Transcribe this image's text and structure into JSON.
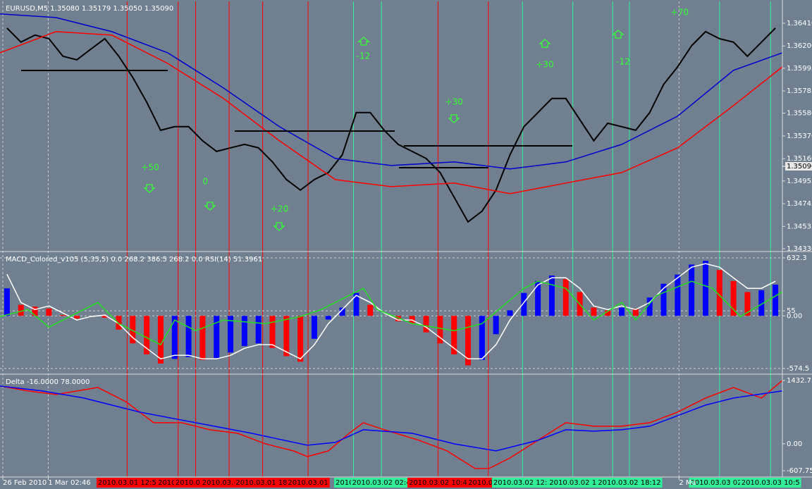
{
  "chart_data": [
    {
      "type": "line",
      "title": "EURUSD,M5 1.35080 1.35179 1.35050 1.35090",
      "x": [
        1,
        3,
        5,
        7,
        9,
        11,
        13,
        15,
        17,
        19,
        21,
        23,
        25,
        27,
        29,
        31,
        33,
        35,
        37,
        39,
        41,
        43,
        45,
        47,
        49,
        51,
        53,
        55,
        57,
        59,
        61,
        63,
        65,
        67,
        69,
        71,
        73,
        75,
        77,
        79,
        81,
        83,
        85,
        87,
        89,
        91,
        93,
        95,
        97,
        99,
        101,
        103,
        105,
        107,
        109,
        111
      ],
      "series": [
        {
          "color": "#000000",
          "values": [
            1.36365,
            1.36235,
            1.363,
            1.36267,
            1.36105,
            1.36072,
            1.3617,
            1.36267,
            1.36105,
            1.3591,
            1.35682,
            1.35422,
            1.35455,
            1.35455,
            1.35325,
            1.35227,
            1.3526,
            1.35292,
            1.3526,
            1.3513,
            1.34968,
            1.3487,
            1.34968,
            1.35032,
            1.35195,
            1.35585,
            1.35585,
            1.35422,
            1.35292,
            1.35227,
            1.35162,
            1.35032,
            1.34805,
            1.34577,
            1.34675,
            1.3487,
            1.35195,
            1.35455,
            1.35585,
            1.35715,
            1.35715,
            1.3552,
            1.35325,
            1.35487,
            1.35455,
            1.35422,
            1.35585,
            1.35845,
            1.36007,
            1.36202,
            1.36332,
            1.36267,
            1.36235,
            1.36105,
            1.36235,
            1.36365
          ]
        },
        {
          "color": "#0000cd",
          "x": [
            0,
            8,
            16,
            24,
            32,
            40,
            48,
            56,
            65,
            73,
            81,
            89,
            97,
            105,
            112
          ],
          "values": [
            1.36495,
            1.36462,
            1.36332,
            1.36137,
            1.35812,
            1.35455,
            1.35162,
            1.35097,
            1.3513,
            1.35065,
            1.3513,
            1.35292,
            1.35552,
            1.35975,
            1.36137
          ]
        },
        {
          "color": "#ff0000",
          "x": [
            0,
            8,
            16,
            24,
            32,
            40,
            48,
            56,
            65,
            73,
            81,
            89,
            97,
            105,
            112
          ],
          "values": [
            1.36137,
            1.36332,
            1.363,
            1.36039,
            1.35715,
            1.35325,
            1.34967,
            1.34902,
            1.34935,
            1.34837,
            1.34935,
            1.35032,
            1.3526,
            1.3565,
            1.36007
          ]
        }
      ],
      "xlim": [
        0,
        112
      ],
      "ylim": [
        1.3431,
        1.36611
      ],
      "yticks": [
        {
          "value": 1.3641,
          "label": "1.36410"
        },
        {
          "value": 1.362,
          "label": "1.36200"
        },
        {
          "value": 1.35995,
          "label": "1.35995"
        },
        {
          "value": 1.35785,
          "label": "1.35785"
        },
        {
          "value": 1.3558,
          "label": "1.35580"
        },
        {
          "value": 1.3537,
          "label": "1.35370"
        },
        {
          "value": 1.3516,
          "label": "1.35160"
        },
        {
          "value": 1.34955,
          "label": "1.34955"
        },
        {
          "value": 1.34745,
          "label": "1.34745"
        },
        {
          "value": 1.34535,
          "label": "1.34535"
        },
        {
          "value": 1.3433,
          "label": "1.34330"
        }
      ],
      "current_price": {
        "value": 1.3509,
        "label": "1.35090"
      },
      "xticks": [
        {
          "value": 0.4,
          "label": "26 Feb 2010"
        },
        {
          "value": 6.9,
          "label": "1 Mar 02:46"
        },
        {
          "value": 97.2,
          "label": "2 Ma"
        }
      ],
      "annotations": [
        {
          "text": "+50",
          "x": 21.5,
          "y": 1.35077
        },
        {
          "text": "0",
          "x": 29.4,
          "y": 1.34947
        },
        {
          "text": "+20",
          "x": 40,
          "y": 1.34694
        },
        {
          "text": "-12",
          "x": 52,
          "y": 1.36105
        },
        {
          "text": "+30",
          "x": 65,
          "y": 1.35682
        },
        {
          "text": "+30",
          "x": 78,
          "y": 1.36027
        },
        {
          "text": "-12",
          "x": 89.2,
          "y": 1.36053
        },
        {
          "text": "+70",
          "x": 97.3,
          "y": 1.36508
        }
      ],
      "markers": [
        {
          "value": 18.2,
          "label": "2010.03.01 12:5",
          "color": "#ff0000"
        },
        {
          "value": 25.5,
          "label": "2010.03.01",
          "color": "#ff0000"
        },
        {
          "value": 28,
          "label": "2010.03.01",
          "color": "#ff0000"
        },
        {
          "value": 32.8,
          "label": "2010.03.01 16:",
          "color": "#ff0000"
        },
        {
          "value": 37.6,
          "label": "2010.03.01 18:",
          "color": "#ff0000"
        },
        {
          "value": 44.1,
          "label": "2010.03.01",
          "color": "#ff0000"
        },
        {
          "value": 50.6,
          "label": "2010.03.0",
          "color": "#33ee99"
        },
        {
          "value": 54.6,
          "label": "2010.03.02 02:4",
          "color": "#33ee99"
        },
        {
          "value": 62.7,
          "label": "2010.03.02 10:4",
          "color": "#ff0000"
        },
        {
          "value": 69.9,
          "label": "2010.03.02",
          "color": "#ff0000"
        },
        {
          "value": 74.8,
          "label": "2010.03.02 12:5",
          "color": "#33ee99"
        },
        {
          "value": 82,
          "label": "2010.03.02 1",
          "color": "#33ee99"
        },
        {
          "value": 87.7,
          "label": "2010",
          "color": "#33ee99"
        },
        {
          "value": 90.1,
          "label": "2010.03.02 18:12",
          "color": "#33ee99"
        },
        {
          "value": 103,
          "label": "2010.03.03 02:5",
          "color": "#33ee99"
        },
        {
          "value": 110.3,
          "label": "2010.03.03 10:5",
          "color": "#33ee99"
        }
      ]
    },
    {
      "type": "bar",
      "title": "MACD_Colored_v105 (5,35,5) 0.0 268.2 386.5 268.2 0.0  RSI(14) 51.3961",
      "x": [
        1,
        3,
        5,
        7,
        9,
        11,
        13,
        15,
        17,
        19,
        21,
        23,
        25,
        27,
        29,
        31,
        33,
        35,
        37,
        39,
        41,
        43,
        45,
        47,
        49,
        51,
        53,
        55,
        57,
        59,
        61,
        63,
        65,
        67,
        69,
        71,
        73,
        75,
        77,
        79,
        81,
        83,
        85,
        87,
        89,
        91,
        93,
        95,
        97,
        99,
        101,
        103,
        105,
        107,
        109,
        111
      ],
      "values": [
        300,
        120,
        100,
        80,
        10,
        -30,
        0,
        -20,
        -150,
        -300,
        -420,
        -520,
        -470,
        -450,
        -480,
        -460,
        -400,
        -330,
        -300,
        -350,
        -440,
        -500,
        -250,
        -40,
        90,
        250,
        120,
        0,
        -60,
        -80,
        -180,
        -300,
        -420,
        -540,
        -480,
        -200,
        60,
        250,
        380,
        440,
        400,
        260,
        90,
        60,
        90,
        80,
        200,
        350,
        450,
        560,
        600,
        500,
        380,
        260,
        280,
        340
      ],
      "rising_color": "#0000ff",
      "falling_color": "#ff0000",
      "series": [
        {
          "color": "#ffffff",
          "values": [
            454,
            146,
            69,
            108,
            31,
            -46,
            -8,
            8,
            -85,
            -238,
            -354,
            -469,
            -431,
            -431,
            -469,
            -469,
            -431,
            -354,
            -315,
            -315,
            -392,
            -469,
            -315,
            -85,
            69,
            223,
            146,
            31,
            -46,
            -46,
            -123,
            -238,
            -354,
            -469,
            -469,
            -315,
            -46,
            146,
            338,
            415,
            415,
            300,
            108,
            69,
            108,
            69,
            146,
            300,
            415,
            531,
            569,
            531,
            415,
            300,
            300,
            377
          ]
        },
        {
          "color": "#22dd22",
          "x": [
            0,
            4,
            7,
            14,
            17,
            23,
            25,
            28,
            32,
            38,
            43,
            46,
            52,
            54,
            59,
            65,
            69,
            75,
            77,
            81,
            85,
            89,
            91,
            94,
            99,
            102,
            106,
            112
          ],
          "values": [
            -8,
            69,
            -123,
            146,
            -85,
            -315,
            -46,
            -162,
            -46,
            -85,
            -8,
            69,
            300,
            69,
            -85,
            -162,
            -85,
            300,
            377,
            300,
            -46,
            146,
            -46,
            223,
            377,
            300,
            -8,
            261
          ]
        }
      ],
      "xlim": [
        0,
        112
      ],
      "ylim": [
        -628.3,
        693.8
      ],
      "yticks": [
        632.3,
        55,
        {
          "value": 0,
          "label": "0.00"
        },
        -574.5
      ],
      "grid": true
    },
    {
      "type": "line",
      "title": "Delta -16.0000 78.0000",
      "series": [
        {
          "color": "#ff0000",
          "x": [
            0,
            4,
            8,
            14,
            18,
            22,
            26,
            30,
            34,
            38,
            42,
            44,
            47,
            50,
            52,
            55,
            60,
            64,
            68,
            70,
            73,
            77,
            81,
            85,
            89,
            93,
            97,
            101,
            105,
            109,
            112
          ],
          "values": [
            1307,
            1196,
            1116,
            1275,
            956,
            478,
            478,
            319,
            239,
            0,
            -159,
            -287,
            -159,
            239,
            478,
            319,
            80,
            -159,
            -558,
            -558,
            -319,
            80,
            478,
            398,
            398,
            478,
            717,
            1036,
            1275,
            1036,
            1434
          ]
        },
        {
          "color": "#0000ff",
          "x": [
            0,
            6,
            12,
            20,
            28,
            36,
            44,
            48,
            52,
            59,
            65,
            71,
            77,
            81,
            85,
            89,
            93,
            97,
            101,
            105,
            112
          ],
          "values": [
            1307,
            1196,
            1036,
            717,
            478,
            239,
            -32,
            32,
            319,
            239,
            0,
            -159,
            80,
            319,
            287,
            319,
            398,
            638,
            877,
            1036,
            1196
          ]
        }
      ],
      "xlim": [
        0,
        112
      ],
      "ylim": [
        -735,
        1560
      ],
      "yticks": [
        1432.75,
        {
          "value": 0,
          "label": "0.00"
        },
        -607.75
      ]
    }
  ]
}
